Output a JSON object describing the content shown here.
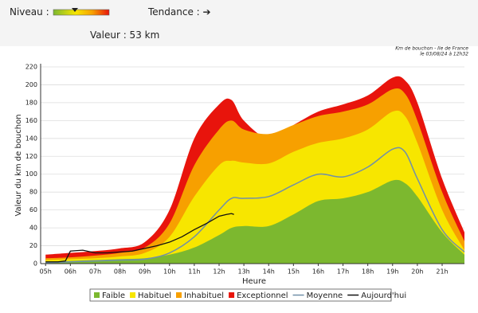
{
  "header": {
    "niveau": "Niveau :",
    "tendance": "Tendance : ➔",
    "valeur": "Valeur : 53 km"
  },
  "chart_data": {
    "type": "area",
    "title": "Km de bouchon - Ile de France",
    "subtitle": "le 03/08/24 à 12h32",
    "x_label": "Heure",
    "y_label": "Valeur du  km de bouchon",
    "xlim": [
      4.8,
      21.9
    ],
    "xticks": [
      {
        "value": 5,
        "label": "05h"
      },
      {
        "value": 6,
        "label": "06h"
      },
      {
        "value": 7,
        "label": "07h"
      },
      {
        "value": 8,
        "label": "08h"
      },
      {
        "value": 9,
        "label": "09h"
      },
      {
        "value": 10,
        "label": "10h"
      },
      {
        "value": 11,
        "label": "11h"
      },
      {
        "value": 12,
        "label": "12h"
      },
      {
        "value": 13,
        "label": "13h"
      },
      {
        "value": 14,
        "label": "14h"
      },
      {
        "value": 15,
        "label": "15h"
      },
      {
        "value": 16,
        "label": "16h"
      },
      {
        "value": 17,
        "label": "17h"
      },
      {
        "value": 18,
        "label": "18h"
      },
      {
        "value": 19,
        "label": "19h"
      },
      {
        "value": 20,
        "label": "20h"
      },
      {
        "value": 21,
        "label": "21h"
      }
    ],
    "ylim": [
      0,
      220
    ],
    "yticks": [
      0,
      20,
      40,
      60,
      80,
      100,
      120,
      140,
      160,
      180,
      200,
      220
    ],
    "grid": true,
    "x": [
      5,
      6,
      7,
      8,
      9,
      10,
      11,
      12,
      12.5,
      13,
      14,
      15,
      16,
      17,
      18,
      19,
      19.5,
      20,
      21,
      21.9
    ],
    "series": [
      {
        "name": "Exceptionnel",
        "color": "#e8140c",
        "kind": "area",
        "values": [
          10,
          12,
          14,
          17,
          24,
          60,
          140,
          178,
          183,
          160,
          140,
          155,
          170,
          178,
          188,
          208,
          205,
          180,
          95,
          35
        ]
      },
      {
        "name": "Inhabituel",
        "color": "#f7a000",
        "kind": "area",
        "values": [
          6,
          7,
          9,
          12,
          18,
          45,
          110,
          150,
          160,
          150,
          145,
          155,
          165,
          170,
          178,
          195,
          190,
          160,
          80,
          25
        ]
      },
      {
        "name": "Habituel",
        "color": "#f7e600",
        "kind": "area",
        "values": [
          4,
          5,
          6,
          8,
          12,
          30,
          75,
          110,
          115,
          113,
          112,
          125,
          135,
          140,
          150,
          170,
          165,
          135,
          60,
          15
        ]
      },
      {
        "name": "Faible",
        "color": "#7cb82f",
        "kind": "area",
        "values": [
          2,
          3,
          4,
          5,
          6,
          10,
          18,
          32,
          40,
          42,
          42,
          55,
          70,
          73,
          80,
          93,
          90,
          75,
          35,
          10
        ]
      },
      {
        "name": "Moyenne",
        "color": "#7090a8",
        "kind": "line",
        "values": [
          1,
          2,
          3,
          4,
          5,
          12,
          30,
          60,
          73,
          73,
          75,
          88,
          100,
          97,
          108,
          128,
          125,
          95,
          38,
          13
        ]
      },
      {
        "name": "Aujourd'hui",
        "color": "#111111",
        "kind": "line",
        "x": [
          5,
          5.5,
          5.8,
          6,
          6.5,
          7,
          7.5,
          8,
          8.5,
          9,
          9.5,
          10,
          10.5,
          11,
          11.5,
          12,
          12.3,
          12.5,
          12.6
        ],
        "values": [
          2,
          2,
          3,
          14,
          15,
          12,
          12,
          13,
          14,
          17,
          20,
          24,
          30,
          38,
          45,
          53,
          55,
          56,
          55
        ]
      }
    ],
    "legend_order": [
      3,
      2,
      1,
      0,
      4,
      5
    ]
  }
}
